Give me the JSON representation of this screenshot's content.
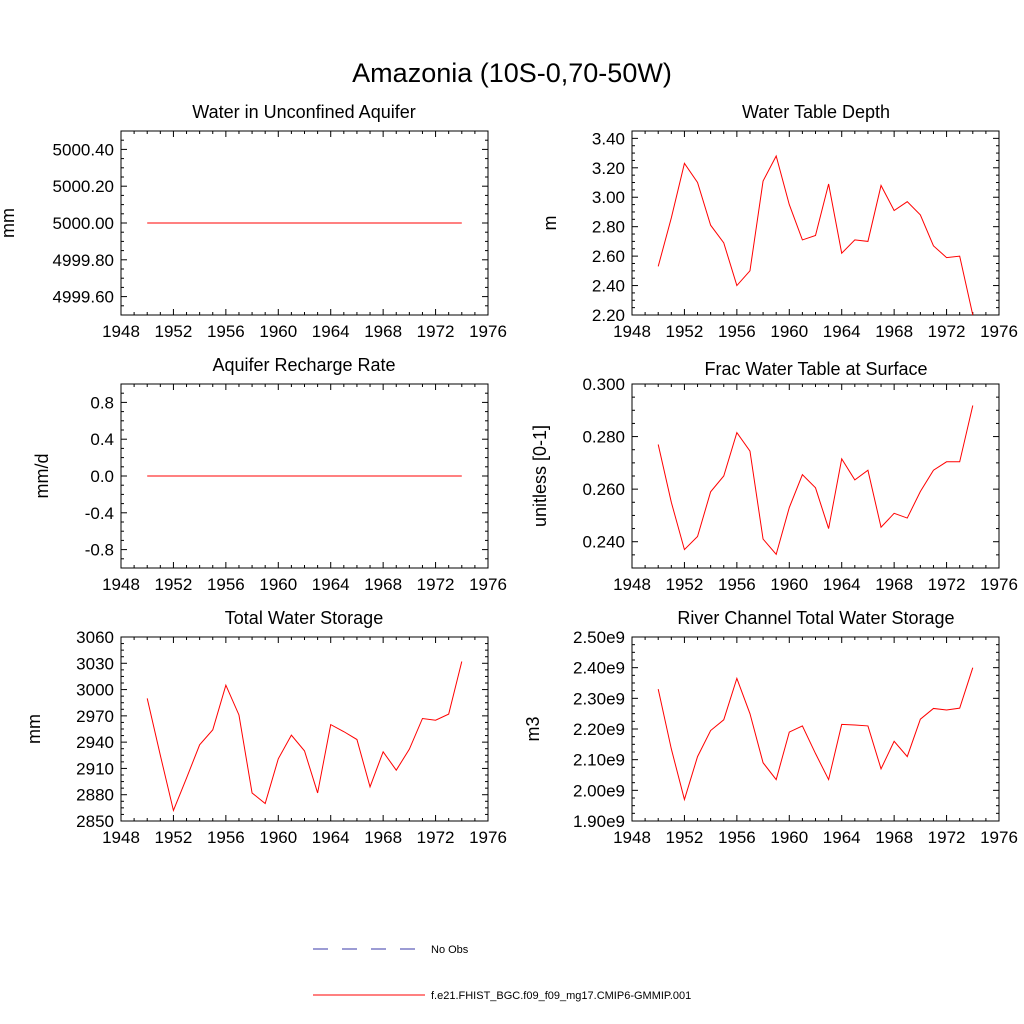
{
  "figure": {
    "title": "Amazonia (10S-0,70-50W)"
  },
  "legend": {
    "items": [
      {
        "label": "No Obs",
        "style": "dashed",
        "color": "#3a3aa8"
      },
      {
        "label": "f.e21.FHIST_BGC.f09_f09_mg17.CMIP6-GMMIP.001",
        "style": "solid",
        "color": "#ff0000"
      }
    ]
  },
  "colors": {
    "series": "#ff0000",
    "frame": "#000000",
    "no_obs": "#3a3aa8"
  },
  "chart_data": [
    {
      "type": "line",
      "title": "Water in Unconfined Aquifer",
      "xlabel": "",
      "ylabel": "mm",
      "xlim": [
        1948,
        1976
      ],
      "ylim": [
        4999.5,
        5000.5
      ],
      "xticks": [
        1948,
        1952,
        1956,
        1960,
        1964,
        1968,
        1972,
        1976
      ],
      "yticks": [
        4999.6,
        4999.8,
        5000.0,
        5000.2,
        5000.4
      ],
      "ytick_labels": [
        "4999.60",
        "4999.80",
        "5000.00",
        "5000.20",
        "5000.40"
      ],
      "grid": false,
      "series": [
        {
          "x": [
            1950,
            1951,
            1952,
            1953,
            1954,
            1955,
            1956,
            1957,
            1958,
            1959,
            1960,
            1961,
            1962,
            1963,
            1964,
            1965,
            1966,
            1967,
            1968,
            1969,
            1970,
            1971,
            1972,
            1973,
            1974
          ],
          "values": [
            5000,
            5000,
            5000,
            5000,
            5000,
            5000,
            5000,
            5000,
            5000,
            5000,
            5000,
            5000,
            5000,
            5000,
            5000,
            5000,
            5000,
            5000,
            5000,
            5000,
            5000,
            5000,
            5000,
            5000,
            5000
          ]
        }
      ]
    },
    {
      "type": "line",
      "title": "Water Table Depth",
      "xlabel": "",
      "ylabel": "m",
      "xlim": [
        1948,
        1976
      ],
      "ylim": [
        2.2,
        3.45
      ],
      "xticks": [
        1948,
        1952,
        1956,
        1960,
        1964,
        1968,
        1972,
        1976
      ],
      "yticks": [
        2.2,
        2.4,
        2.6,
        2.8,
        3.0,
        3.2,
        3.4
      ],
      "ytick_labels": [
        "2.20",
        "2.40",
        "2.60",
        "2.80",
        "3.00",
        "3.20",
        "3.40"
      ],
      "grid": false,
      "series": [
        {
          "x": [
            1950,
            1951,
            1952,
            1953,
            1954,
            1955,
            1956,
            1957,
            1958,
            1959,
            1960,
            1961,
            1962,
            1963,
            1964,
            1965,
            1966,
            1967,
            1968,
            1969,
            1970,
            1971,
            1972,
            1973,
            1974
          ],
          "values": [
            2.53,
            2.86,
            3.23,
            3.1,
            2.81,
            2.69,
            2.4,
            2.5,
            3.11,
            3.28,
            2.95,
            2.71,
            2.74,
            3.09,
            2.62,
            2.71,
            2.7,
            3.08,
            2.91,
            2.97,
            2.88,
            2.67,
            2.59,
            2.6,
            2.2
          ]
        }
      ]
    },
    {
      "type": "line",
      "title": "Aquifer Recharge Rate",
      "xlabel": "",
      "ylabel": "mm/d",
      "xlim": [
        1948,
        1976
      ],
      "ylim": [
        -1.0,
        1.0
      ],
      "xticks": [
        1948,
        1952,
        1956,
        1960,
        1964,
        1968,
        1972,
        1976
      ],
      "yticks": [
        -0.8,
        -0.4,
        0.0,
        0.4,
        0.8
      ],
      "ytick_labels": [
        "-0.8",
        "-0.4",
        "0.0",
        "0.4",
        "0.8"
      ],
      "grid": false,
      "series": [
        {
          "x": [
            1950,
            1951,
            1952,
            1953,
            1954,
            1955,
            1956,
            1957,
            1958,
            1959,
            1960,
            1961,
            1962,
            1963,
            1964,
            1965,
            1966,
            1967,
            1968,
            1969,
            1970,
            1971,
            1972,
            1973,
            1974
          ],
          "values": [
            0,
            0,
            0,
            0,
            0,
            0,
            0,
            0,
            0,
            0,
            0,
            0,
            0,
            0,
            0,
            0,
            0,
            0,
            0,
            0,
            0,
            0,
            0,
            0,
            0
          ]
        }
      ]
    },
    {
      "type": "line",
      "title": "Frac Water Table at Surface",
      "xlabel": "",
      "ylabel": "unitless [0-1]",
      "xlim": [
        1948,
        1976
      ],
      "ylim": [
        0.23,
        0.3
      ],
      "xticks": [
        1948,
        1952,
        1956,
        1960,
        1964,
        1968,
        1972,
        1976
      ],
      "yticks": [
        0.24,
        0.26,
        0.28,
        0.3
      ],
      "ytick_labels": [
        "0.240",
        "0.260",
        "0.280",
        "0.300"
      ],
      "grid": false,
      "series": [
        {
          "x": [
            1950,
            1951,
            1952,
            1953,
            1954,
            1955,
            1956,
            1957,
            1958,
            1959,
            1960,
            1961,
            1962,
            1963,
            1964,
            1965,
            1966,
            1967,
            1968,
            1969,
            1970,
            1971,
            1972,
            1973,
            1974
          ],
          "values": [
            0.277,
            0.255,
            0.237,
            0.242,
            0.259,
            0.265,
            0.2815,
            0.2745,
            0.241,
            0.2352,
            0.253,
            0.2655,
            0.2605,
            0.245,
            0.2715,
            0.2635,
            0.2672,
            0.2455,
            0.2508,
            0.249,
            0.2591,
            0.2672,
            0.2704,
            0.2704,
            0.2918
          ]
        }
      ]
    },
    {
      "type": "line",
      "title": "Total Water Storage",
      "xlabel": "",
      "ylabel": "mm",
      "xlim": [
        1948,
        1976
      ],
      "ylim": [
        2850,
        3060
      ],
      "xticks": [
        1948,
        1952,
        1956,
        1960,
        1964,
        1968,
        1972,
        1976
      ],
      "yticks": [
        2850,
        2880,
        2910,
        2940,
        2970,
        3000,
        3030,
        3060
      ],
      "ytick_labels": [
        "2850",
        "2880",
        "2910",
        "2940",
        "2970",
        "3000",
        "3030",
        "3060"
      ],
      "grid": false,
      "series": [
        {
          "x": [
            1950,
            1951,
            1952,
            1953,
            1954,
            1955,
            1956,
            1957,
            1958,
            1959,
            1960,
            1961,
            1962,
            1963,
            1964,
            1965,
            1966,
            1967,
            1968,
            1969,
            1970,
            1971,
            1972,
            1973,
            1974
          ],
          "values": [
            2990,
            2925,
            2862,
            2899,
            2937,
            2954,
            3005,
            2971,
            2882,
            2870,
            2921,
            2948,
            2930,
            2882,
            2960,
            2952,
            2943,
            2889,
            2929,
            2908,
            2932,
            2967,
            2965,
            2972,
            3032
          ]
        }
      ]
    },
    {
      "type": "line",
      "title": "River Channel Total Water Storage",
      "xlabel": "",
      "ylabel": "m3",
      "xlim": [
        1948,
        1976
      ],
      "ylim": [
        1900000000.0,
        2500000000.0
      ],
      "xticks": [
        1948,
        1952,
        1956,
        1960,
        1964,
        1968,
        1972,
        1976
      ],
      "yticks": [
        1900000000.0,
        2000000000.0,
        2100000000.0,
        2200000000.0,
        2300000000.0,
        2400000000.0,
        2500000000.0
      ],
      "ytick_labels": [
        "1.90e9",
        "2.00e9",
        "2.10e9",
        "2.20e9",
        "2.30e9",
        "2.40e9",
        "2.50e9"
      ],
      "grid": false,
      "series": [
        {
          "x": [
            1950,
            1951,
            1952,
            1953,
            1954,
            1955,
            1956,
            1957,
            1958,
            1959,
            1960,
            1961,
            1962,
            1963,
            1964,
            1965,
            1966,
            1967,
            1968,
            1969,
            1970,
            1971,
            1972,
            1973,
            1974
          ],
          "values": [
            2330000000.0,
            2135000000.0,
            1970000000.0,
            2110000000.0,
            2195000000.0,
            2230000000.0,
            2365000000.0,
            2250000000.0,
            2090000000.0,
            2035000000.0,
            2190000000.0,
            2210000000.0,
            2120000000.0,
            2035000000.0,
            2215000000.0,
            2213000000.0,
            2210000000.0,
            2070000000.0,
            2160000000.0,
            2110000000.0,
            2232000000.0,
            2267000000.0,
            2262000000.0,
            2268000000.0,
            2400000000.0
          ]
        }
      ]
    }
  ]
}
